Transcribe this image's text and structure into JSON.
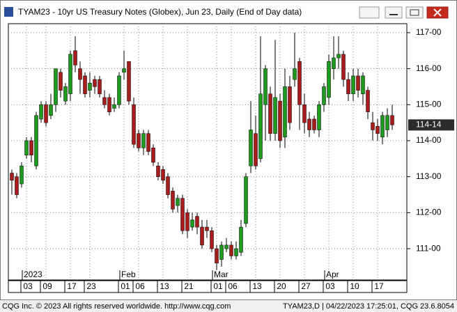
{
  "window_title": "TYAM23 - 10yr US Treasury Notes (Globex), Jun 23, Daily (End of Day data)",
  "footer_left": "CQG Inc. © 2023 All rights reserved worldwide. http://www.cqg.com",
  "footer_right": "TYAM23,D | 04/22/2023 17:25:01, CQG 23.6.8054",
  "chart_data": {
    "type": "candlestick",
    "categories": [
      null,
      null,
      null,
      "03",
      null,
      null,
      null,
      "09",
      null,
      null,
      null,
      null,
      "17",
      null,
      null,
      null,
      "23",
      null,
      null,
      null,
      null,
      null,
      null,
      "01",
      null,
      null,
      "06",
      null,
      null,
      null,
      null,
      "13",
      null,
      null,
      null,
      null,
      "21",
      null,
      null,
      null,
      null,
      null,
      "01",
      null,
      null,
      "06",
      null,
      null,
      null,
      null,
      "13",
      null,
      null,
      null,
      null,
      "20",
      null,
      null,
      null,
      null,
      "27",
      null,
      null,
      null,
      null,
      "03",
      null,
      null,
      null,
      null,
      "10",
      null,
      null,
      null,
      null,
      "17",
      null,
      null,
      null
    ],
    "months": [
      null,
      null,
      null,
      "2023",
      null,
      null,
      null,
      null,
      null,
      null,
      null,
      null,
      null,
      null,
      null,
      null,
      null,
      null,
      null,
      null,
      null,
      null,
      null,
      "Feb",
      null,
      null,
      null,
      null,
      null,
      null,
      null,
      null,
      null,
      null,
      null,
      null,
      null,
      null,
      null,
      null,
      null,
      null,
      "Mar",
      null,
      null,
      null,
      null,
      null,
      null,
      null,
      null,
      null,
      null,
      null,
      null,
      null,
      null,
      null,
      null,
      null,
      null,
      null,
      null,
      null,
      null,
      "Apr",
      null,
      null,
      null,
      null,
      null,
      null,
      null,
      null,
      null,
      null,
      null,
      null,
      null
    ],
    "open": [
      113.1,
      113.0,
      112.8,
      113.6,
      114.0,
      113.3,
      114.6,
      115.0,
      114.7,
      115.0,
      115.9,
      115.1,
      115.3,
      116.5,
      116.0,
      115.8,
      115.4,
      115.7,
      115.7,
      115.2,
      115.2,
      114.9,
      115.0,
      115.9,
      116.2,
      115.0,
      114.2,
      113.8,
      114.2,
      113.8,
      113.3,
      113.2,
      113.0,
      112.6,
      112.2,
      112.4,
      112.0,
      111.6,
      111.9,
      111.6,
      111.6,
      111.5,
      111.0,
      110.7,
      111.0,
      111.1,
      110.8,
      110.9,
      111.7,
      113.3,
      114.2,
      113.5,
      115.0,
      115.3,
      114.2,
      115.1,
      114.1,
      115.5,
      115.7,
      116.2,
      115.0,
      114.6,
      114.6,
      114.3,
      115.0,
      115.2,
      116.0,
      116.3,
      116.4,
      115.7,
      115.3,
      115.8,
      115.3,
      115.4,
      114.5,
      114.4,
      114.1,
      114.3,
      114.7
    ],
    "high": [
      113.2,
      113.1,
      113.4,
      114.1,
      114.1,
      114.8,
      115.1,
      115.1,
      115.3,
      116.0,
      116.0,
      115.6,
      116.5,
      116.9,
      116.2,
      115.9,
      115.9,
      115.8,
      115.8,
      115.4,
      115.3,
      115.2,
      115.9,
      116.5,
      116.2,
      115.2,
      114.3,
      114.3,
      114.3,
      113.9,
      113.4,
      113.3,
      113.1,
      112.7,
      112.5,
      112.5,
      112.1,
      112.0,
      112.0,
      111.8,
      111.8,
      111.6,
      111.1,
      111.2,
      111.3,
      111.2,
      111.2,
      111.8,
      113.1,
      115.1,
      114.7,
      116.9,
      116.1,
      115.5,
      116.8,
      115.3,
      116.0,
      115.8,
      117.0,
      116.3,
      115.3,
      114.8,
      114.7,
      115.1,
      115.6,
      116.4,
      116.9,
      116.9,
      116.5,
      115.9,
      116.0,
      116.0,
      115.9,
      115.5,
      114.8,
      114.6,
      114.8,
      114.9,
      115.0
    ],
    "low": [
      112.5,
      112.4,
      112.7,
      113.5,
      113.4,
      113.2,
      114.5,
      114.4,
      114.6,
      114.8,
      115.2,
      115.0,
      115.1,
      115.9,
      115.3,
      115.2,
      115.2,
      115.3,
      115.2,
      114.9,
      114.7,
      114.8,
      114.9,
      115.7,
      115.0,
      113.8,
      113.7,
      113.6,
      113.6,
      113.3,
      112.9,
      112.8,
      112.4,
      112.0,
      112.0,
      111.4,
      111.3,
      111.5,
      111.4,
      111.0,
      111.3,
      110.9,
      110.4,
      110.5,
      110.9,
      110.7,
      110.7,
      110.8,
      111.6,
      113.1,
      113.2,
      113.4,
      114.0,
      114.0,
      114.0,
      113.8,
      113.8,
      114.3,
      115.5,
      114.3,
      114.2,
      114.1,
      114.2,
      114.1,
      114.8,
      115.0,
      115.7,
      116.0,
      115.5,
      115.1,
      115.1,
      115.2,
      115.0,
      114.6,
      114.0,
      114.0,
      113.9,
      114.1,
      114.3
    ],
    "close": [
      112.9,
      112.5,
      113.3,
      114.0,
      113.6,
      114.7,
      115.0,
      114.5,
      115.0,
      116.0,
      115.4,
      115.5,
      116.4,
      116.1,
      115.7,
      115.3,
      115.6,
      115.5,
      115.3,
      115.0,
      114.8,
      115.0,
      115.8,
      116.0,
      115.1,
      113.9,
      113.8,
      114.2,
      113.7,
      113.4,
      113.0,
      112.9,
      112.5,
      112.1,
      112.4,
      111.5,
      111.5,
      111.8,
      111.6,
      111.1,
      111.5,
      111.0,
      110.6,
      111.1,
      111.1,
      110.8,
      111.0,
      111.6,
      113.0,
      114.3,
      113.3,
      115.3,
      116.0,
      114.2,
      115.2,
      114.0,
      115.5,
      114.5,
      116.0,
      115.0,
      114.5,
      114.3,
      114.3,
      115.0,
      115.5,
      116.2,
      116.3,
      116.4,
      115.7,
      115.3,
      115.8,
      115.4,
      115.8,
      114.8,
      114.3,
      114.2,
      114.7,
      114.7,
      114.4375
    ],
    "up_color": "#1e9a1e",
    "down_color": "#a81c1c",
    "ylim": [
      110.17,
      117.25
    ],
    "yticks": [
      {
        "value": 111,
        "label": "111-00"
      },
      {
        "value": 112,
        "label": "112-00"
      },
      {
        "value": 113,
        "label": "113-00"
      },
      {
        "value": 114,
        "label": "114-00"
      },
      {
        "value": 115,
        "label": "115-00"
      },
      {
        "value": 116,
        "label": "116-00"
      },
      {
        "value": 117,
        "label": "117-00"
      }
    ],
    "last_price": 114.4375,
    "last_price_label": "114-14",
    "grid": true
  }
}
